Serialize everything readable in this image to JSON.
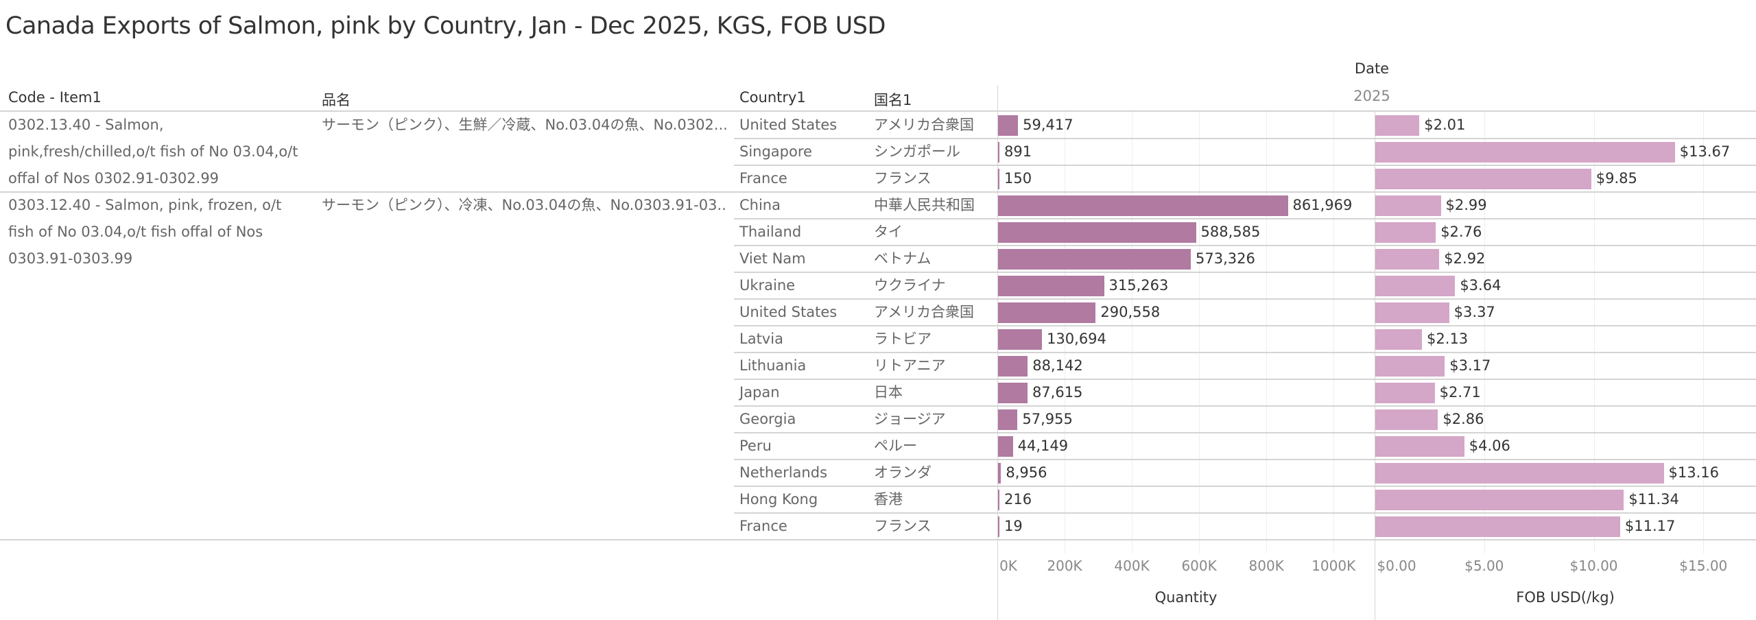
{
  "title": "Canada Exports of Salmon, pink by Country, Jan - Dec 2025, KGS, FOB USD",
  "headers": {
    "code": "Code - Item1",
    "hinmei": "品名",
    "country": "Country1",
    "kokumei": "国名1",
    "date": "Date",
    "year": "2025"
  },
  "groups": [
    {
      "code": "0302.13.40 - Salmon, pink,fresh/chilled,o/t fish of No 03.04,o/t offal of Nos 0302.91-0302.99",
      "hinmei": "サーモン（ピンク）、生鮮／冷蔵、No.03.04の魚、No.0302...",
      "rows": 3
    },
    {
      "code": "0303.12.40 - Salmon, pink, frozen, o/t fish of No 03.04,o/t fish offal of Nos 0303.91-0303.99",
      "hinmei": "サーモン（ピンク）、冷凍、No.03.04の魚、No.0303.91-03..",
      "rows": 13
    }
  ],
  "chart_data": {
    "type": "bar",
    "orientation": "horizontal",
    "categories": [
      "United States",
      "Singapore",
      "France",
      "China",
      "Thailand",
      "Viet Nam",
      "Ukraine",
      "United States",
      "Latvia",
      "Lithuania",
      "Japan",
      "Georgia",
      "Peru",
      "Netherlands",
      "Hong Kong",
      "France"
    ],
    "categories_ja": [
      "アメリカ合衆国",
      "シンガポール",
      "フランス",
      "中華人民共和国",
      "タイ",
      "ベトナム",
      "ウクライナ",
      "アメリカ合衆国",
      "ラトビア",
      "リトアニア",
      "日本",
      "ジョージア",
      "ペルー",
      "オランダ",
      "香港",
      "フランス"
    ],
    "series": [
      {
        "name": "Quantity",
        "color": "#b07aa1",
        "values": [
          59417,
          891,
          150,
          861969,
          588585,
          573326,
          315263,
          290558,
          130694,
          88142,
          87615,
          57955,
          44149,
          8956,
          216,
          19
        ],
        "labels": [
          "59,417",
          "891",
          "150",
          "861,969",
          "588,585",
          "573,326",
          "315,263",
          "290,558",
          "130,694",
          "88,142",
          "87,615",
          "57,955",
          "44,149",
          "8,956",
          "216",
          "19"
        ],
        "xlim": [
          0,
          1122000
        ],
        "ticks": [
          0,
          200000,
          400000,
          600000,
          800000,
          1000000
        ],
        "tick_labels": [
          "0K",
          "200K",
          "400K",
          "600K",
          "800K",
          "1000K"
        ]
      },
      {
        "name": "FOB USD(/kg)",
        "color": "#d4a6c8",
        "values": [
          2.01,
          13.67,
          9.85,
          2.99,
          2.76,
          2.92,
          3.64,
          3.37,
          2.13,
          3.17,
          2.71,
          2.86,
          4.06,
          13.16,
          11.34,
          11.17
        ],
        "labels": [
          "$2.01",
          "$13.67",
          "$9.85",
          "$2.99",
          "$2.76",
          "$2.92",
          "$3.64",
          "$3.37",
          "$2.13",
          "$3.17",
          "$2.71",
          "$2.86",
          "$4.06",
          "$13.16",
          "$11.34",
          "$11.17"
        ],
        "xlim": [
          0,
          17.4
        ],
        "ticks": [
          0,
          5,
          10,
          15
        ],
        "tick_labels": [
          "$0.00",
          "$5.00",
          "$10.00",
          "$15.00"
        ]
      }
    ],
    "grid": true
  }
}
